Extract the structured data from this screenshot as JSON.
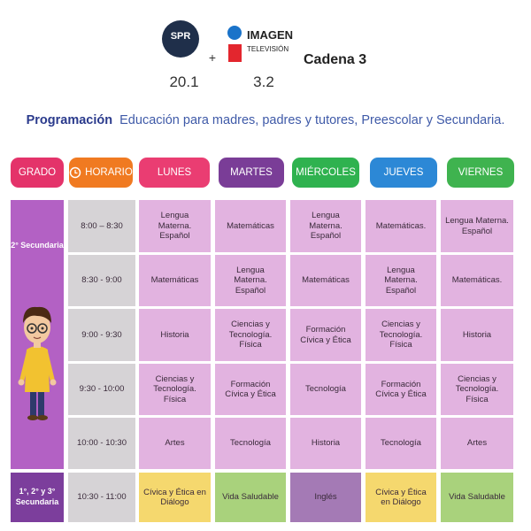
{
  "header": {
    "logo_1": "SPR",
    "logo_2_line_1": "IMAGEN",
    "logo_2_line_2": "TELEVISIÓN",
    "plus": "+",
    "channel_1": "20.1",
    "channel_2": "3.2",
    "network": "Cadena 3"
  },
  "subtitle": {
    "bold": "Programación",
    "text": "Educación para madres, padres y tutores, Preescolar y Secundaria."
  },
  "table": {
    "columns": [
      "GRADO",
      "HORARIO",
      "LUNES",
      "MARTES",
      "MIÉRCOLES",
      "JUEVES",
      "VIERNES"
    ],
    "groups": [
      {
        "grade": "2° Secundaria",
        "rows": [
          {
            "time": "8:00 – 8:30",
            "cells": [
              "Lengua Materna. Español",
              "Matemáticas",
              "Lengua Materna. Español",
              "Matemáticas.",
              "Lengua Materna. Español"
            ]
          },
          {
            "time": "8:30 - 9:00",
            "cells": [
              "Matemáticas",
              "Lengua Materna. Español",
              "Matemáticas",
              "Lengua Materna. Español",
              "Matemáticas."
            ]
          },
          {
            "time": "9:00 - 9:30",
            "cells": [
              "Historia",
              "Ciencias y Tecnología. Física",
              "Formación Cívica y Ética",
              "Ciencias y Tecnología. Física",
              "Historia"
            ]
          },
          {
            "time": "9:30 - 10:00",
            "cells": [
              "Ciencias y Tecnología. Física",
              "Formación Cívica y Ética",
              "Tecnología",
              "Formación Cívica y Ética",
              "Ciencias y Tecnología. Física"
            ]
          },
          {
            "time": "10:00 - 10:30",
            "cells": [
              "Artes",
              "Tecnología",
              "Historia",
              "Tecnología",
              "Artes"
            ]
          }
        ]
      },
      {
        "grade": "1°, 2° y 3° Secundaria",
        "rows": [
          {
            "time": "10:30 - 11:00",
            "cells": [
              "Cívica y Ética en Diálogo",
              "Vida Saludable",
              "Inglés",
              "Cívica y Ética en Diálogo",
              "Vida Saludable"
            ]
          }
        ]
      }
    ]
  }
}
